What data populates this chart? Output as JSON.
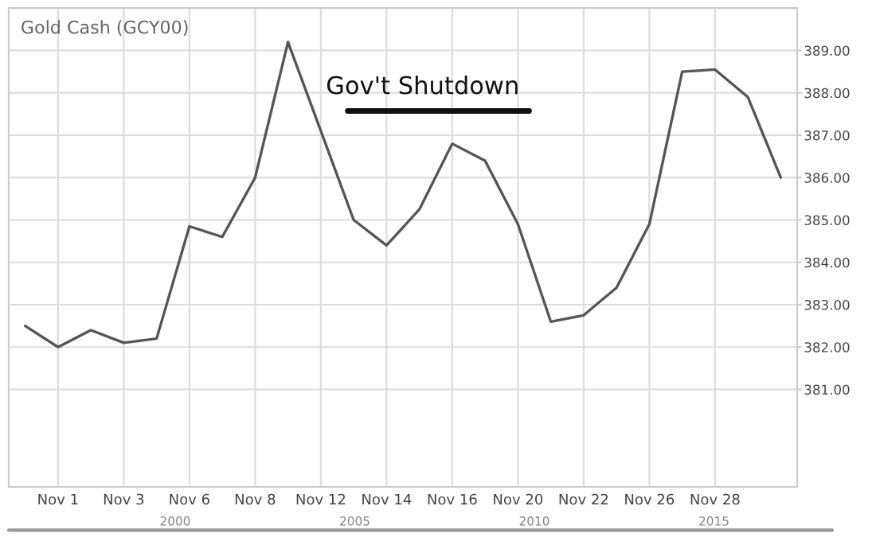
{
  "chart_data": {
    "type": "line",
    "title": "Gold Cash (GCY00)",
    "categories": [
      null,
      "Nov 1",
      null,
      "Nov 3",
      null,
      "Nov 6",
      null,
      "Nov 8",
      null,
      "Nov 12",
      null,
      "Nov 14",
      null,
      "Nov 16",
      null,
      "Nov 20",
      null,
      "Nov 22",
      null,
      "Nov 26",
      null,
      "Nov 28",
      null,
      null
    ],
    "series": [
      {
        "color": "#555555",
        "values": [
          382.5,
          382.0,
          382.4,
          382.1,
          382.2,
          384.85,
          384.6,
          386.0,
          389.2,
          387.1,
          385.0,
          384.4,
          385.25,
          386.8,
          386.4,
          384.9,
          382.6,
          382.75,
          383.4,
          384.9,
          388.5,
          388.55,
          387.9,
          386.0
        ]
      }
    ],
    "ylim": [
      378.7,
      390.0
    ],
    "yticks": [
      {
        "value": 381,
        "label": "381.00"
      },
      {
        "value": 382,
        "label": "382.00"
      },
      {
        "value": 383,
        "label": "383.00"
      },
      {
        "value": 384,
        "label": "384.00"
      },
      {
        "value": 385,
        "label": "385.00"
      },
      {
        "value": 386,
        "label": "386.00"
      },
      {
        "value": 387,
        "label": "387.00"
      },
      {
        "value": 388,
        "label": "388.00"
      },
      {
        "value": 389,
        "label": "389.00"
      }
    ],
    "annotations": [
      "Gov't Shutdown",
      "2000",
      "2005",
      "2010",
      "2015"
    ],
    "grid": true,
    "legend": false,
    "marker": "none",
    "line_style": "solid"
  }
}
